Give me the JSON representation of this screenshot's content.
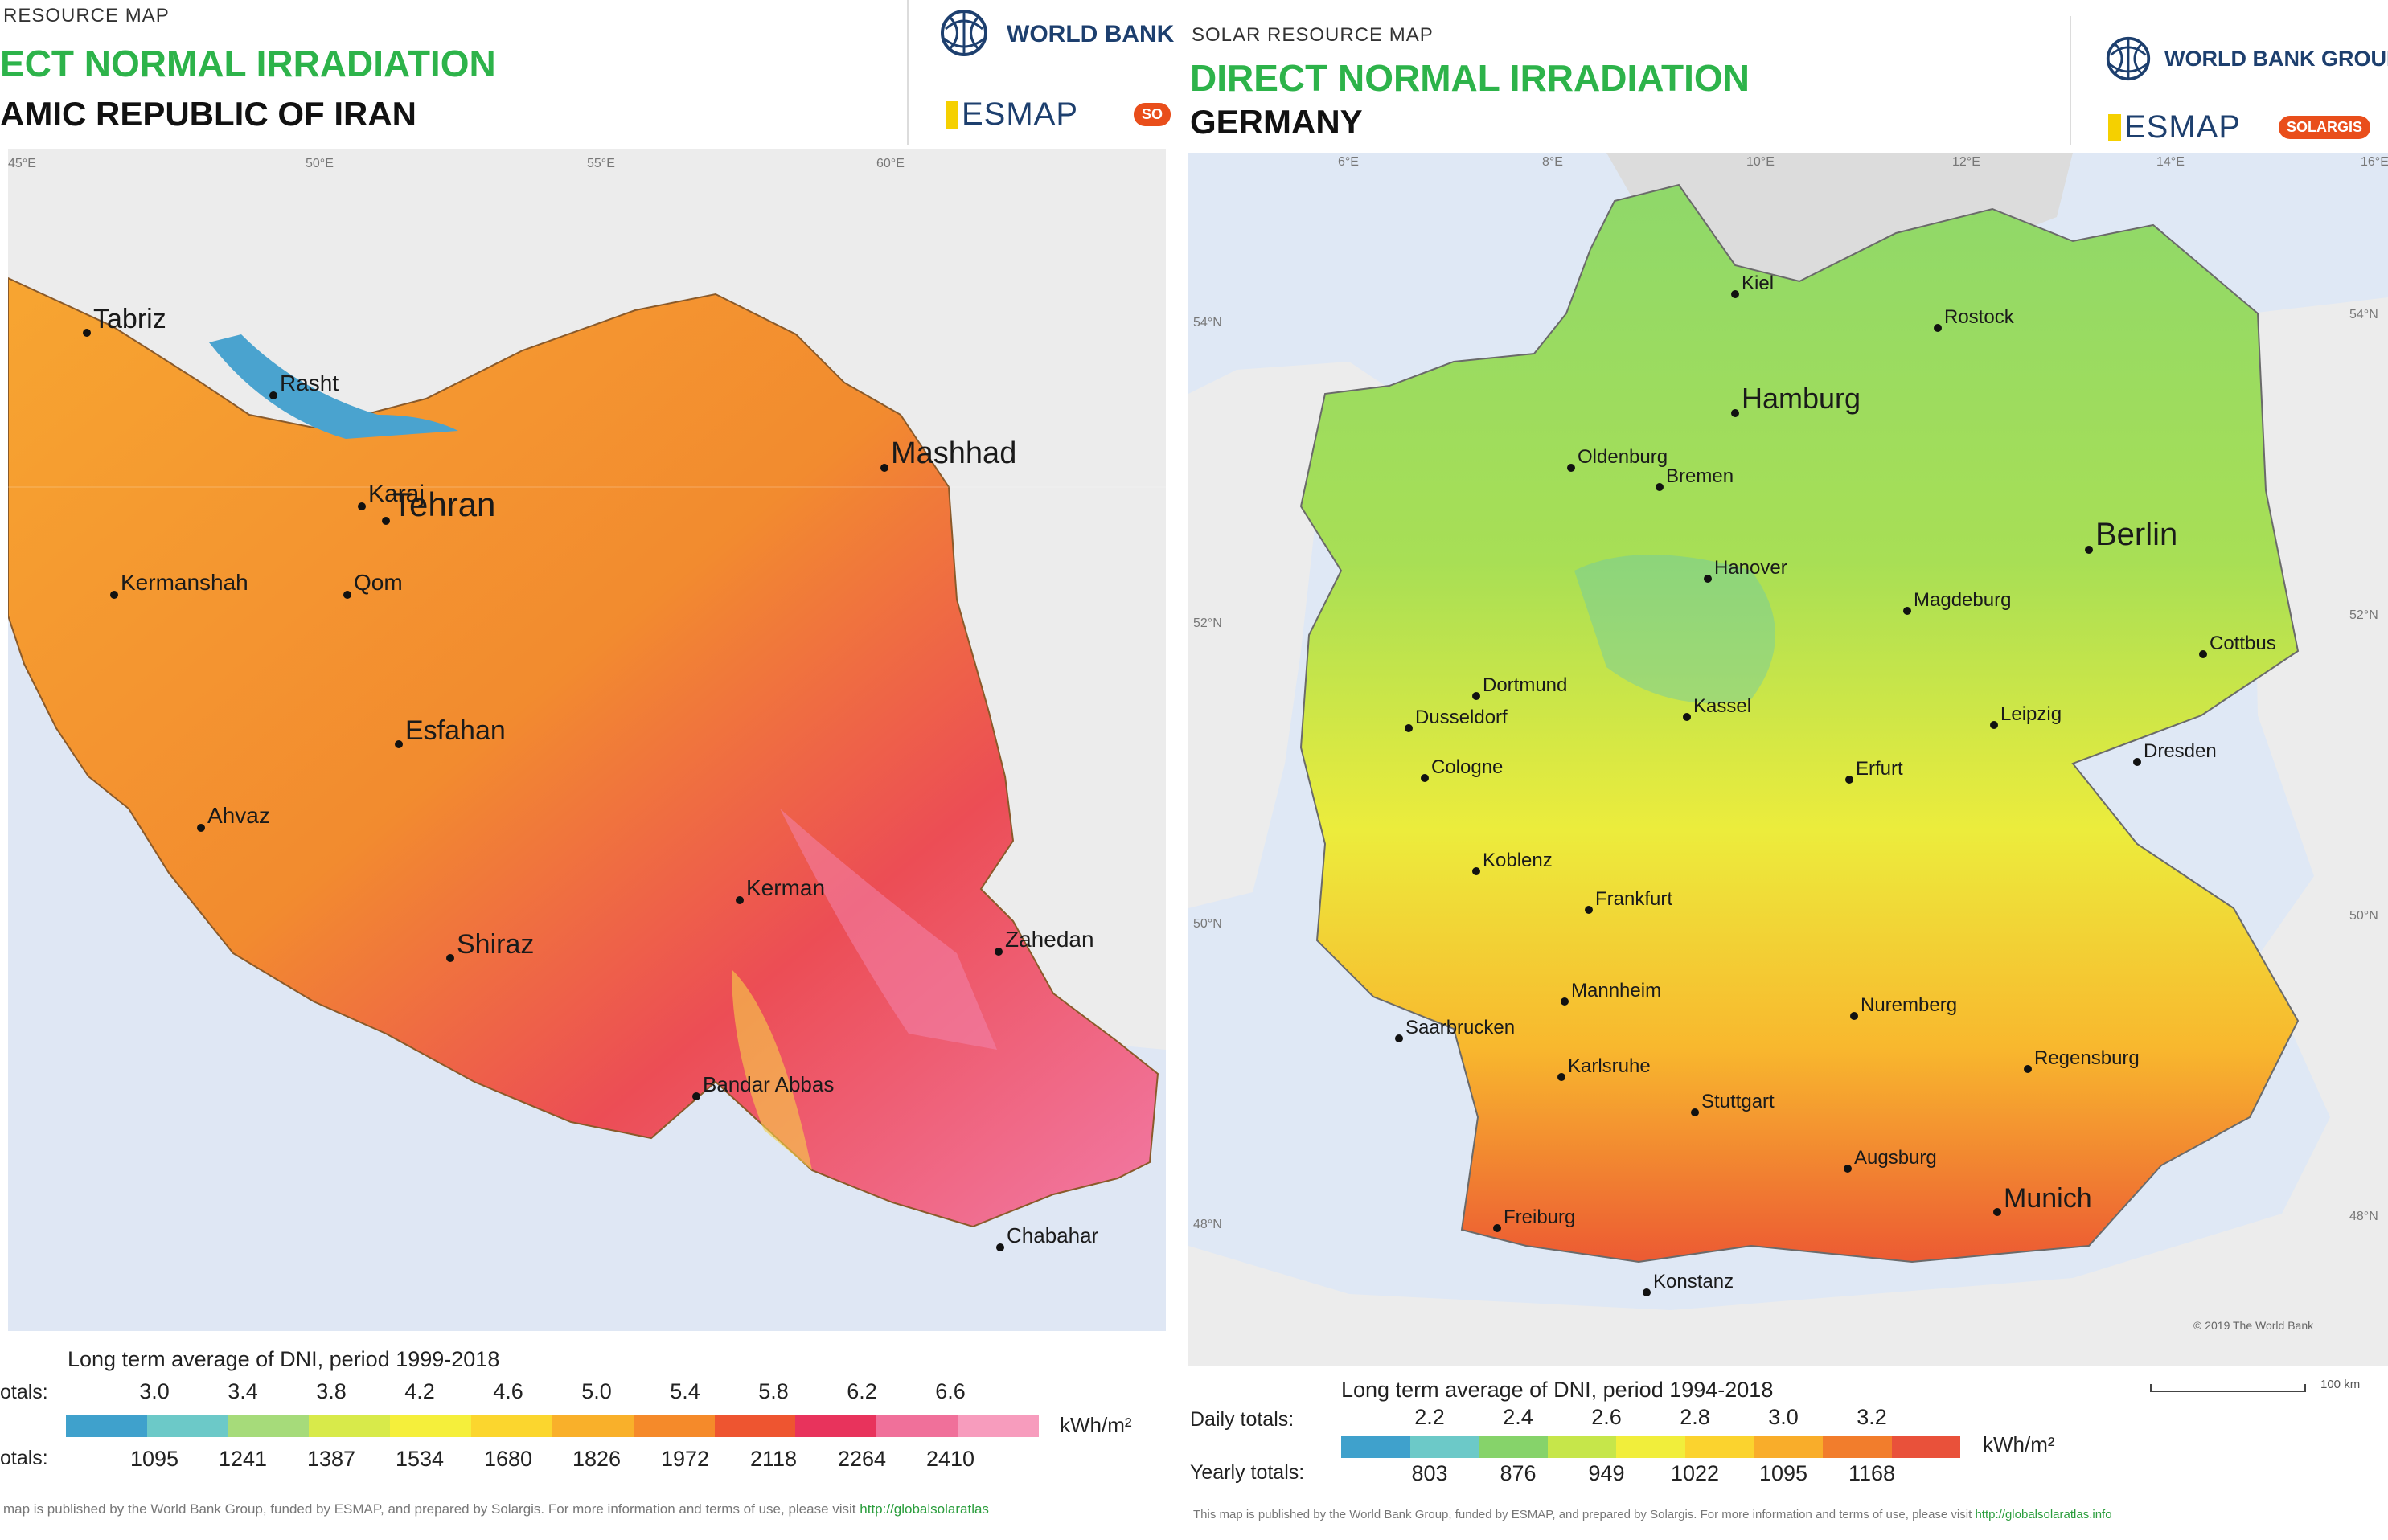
{
  "iran": {
    "header_small": "RESOURCE MAP",
    "title": "ECT NORMAL IRRADIATION",
    "country": "AMIC REPUBLIC OF IRAN",
    "org_world_bank": "WORLD BANK",
    "org_esmap": "ESMAP",
    "org_solargis_partial": "SO",
    "longitudes": [
      "45°E",
      "50°E",
      "55°E",
      "60°E"
    ],
    "cities": [
      "Tabriz",
      "Rasht",
      "Mashhad",
      "Karaj",
      "Tehran",
      "Kermanshah",
      "Qom",
      "Esfahan",
      "Ahvaz",
      "Kerman",
      "Shiraz",
      "Zahedan",
      "Bandar Abbas",
      "Chabahar"
    ],
    "legend": {
      "caption": "Long term average of DNI, period 1999-2018",
      "daily_label": "otals:",
      "yearly_label": "otals:",
      "daily": [
        "3.0",
        "3.4",
        "3.8",
        "4.2",
        "4.6",
        "5.0",
        "5.4",
        "5.8",
        "6.2",
        "6.6"
      ],
      "yearly": [
        "1095",
        "1241",
        "1387",
        "1534",
        "1680",
        "1826",
        "1972",
        "2118",
        "2264",
        "2410"
      ],
      "unit": "kWh/m²",
      "colors": [
        "#3fa1cc",
        "#6cc9c8",
        "#a6db7a",
        "#d8ea4a",
        "#f5ef3b",
        "#fbd62e",
        "#f9b02a",
        "#f58a2a",
        "#ee5530",
        "#e8335c",
        "#f0709a",
        "#f79cbd"
      ]
    },
    "footer": "map is published by the World Bank Group, funded by ESMAP, and prepared by Solargis. For more information and terms of use, please visit ",
    "footer_link": "http://globalsolaratlas"
  },
  "germany": {
    "header_small": "SOLAR RESOURCE MAP",
    "title": "DIRECT NORMAL IRRADIATION",
    "country": "GERMANY",
    "org_world_bank": "WORLD BANK GROUP",
    "org_esmap": "ESMAP",
    "org_solargis": "SOLARGIS",
    "longitudes": [
      "6°E",
      "8°E",
      "10°E",
      "12°E",
      "14°E",
      "16°E"
    ],
    "latitudes_left": [
      "54°N",
      "52°N",
      "50°N",
      "48°N"
    ],
    "latitudes_right": [
      "54°N",
      "52°N",
      "50°N",
      "48°N"
    ],
    "cities": [
      "Kiel",
      "Rostock",
      "Hamburg",
      "Oldenburg",
      "Bremen",
      "Berlin",
      "Hanover",
      "Magdeburg",
      "Cottbus",
      "Dortmund",
      "Kassel",
      "Leipzig",
      "Dusseldorf",
      "Dresden",
      "Cologne",
      "Erfurt",
      "Koblenz",
      "Frankfurt",
      "Mannheim",
      "Nuremberg",
      "Saarbrucken",
      "Karlsruhe",
      "Regensburg",
      "Stuttgart",
      "Augsburg",
      "Munich",
      "Freiburg",
      "Konstanz"
    ],
    "copyright": "© 2019 The World Bank",
    "legend": {
      "caption": "Long term average of DNI, period 1994-2018",
      "daily_label": "Daily totals:",
      "yearly_label": "Yearly totals:",
      "daily": [
        "2.2",
        "2.4",
        "2.6",
        "2.8",
        "3.0",
        "3.2"
      ],
      "yearly": [
        "803",
        "876",
        "949",
        "1022",
        "1095",
        "1168"
      ],
      "unit": "kWh/m²",
      "scale_label": "100 km",
      "colors": [
        "#3fa1cc",
        "#6cc9c8",
        "#86d36a",
        "#c6e64a",
        "#f1ee3b",
        "#fbd32e",
        "#f9ad2a",
        "#f27d2c",
        "#e9513a"
      ]
    },
    "footer": "This map is published by the World Bank Group, funded by ESMAP, and prepared by Solargis. For more information and terms of use, please visit ",
    "footer_link": "http://globalsolaratlas.info"
  }
}
